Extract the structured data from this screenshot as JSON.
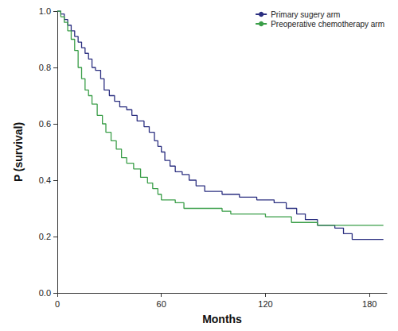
{
  "chart_data": {
    "type": "line",
    "line_style": "step",
    "marker": "none",
    "xlabel": "Months",
    "ylabel": "P (survival)",
    "xlim": [
      0,
      190
    ],
    "xticks": [
      0,
      60,
      120,
      180
    ],
    "ylim": [
      0,
      1.0
    ],
    "yticks": [
      {
        "value": 0,
        "label": "0.0"
      },
      0.2,
      0.4,
      0.6,
      0.8,
      {
        "value": 1.0,
        "label": "1.0"
      }
    ],
    "grid": false,
    "legend": "top-right",
    "series": [
      {
        "name": "Primary sugery arm",
        "color": "#2b2f80",
        "x": [
          0,
          2,
          4,
          6,
          8,
          10,
          12,
          14,
          16,
          18,
          20,
          22,
          25,
          27,
          30,
          33,
          36,
          40,
          43,
          46,
          50,
          53,
          56,
          58,
          60,
          62,
          65,
          68,
          72,
          76,
          80,
          85,
          95,
          105,
          115,
          125,
          132,
          138,
          143,
          150,
          160,
          165,
          170,
          188
        ],
        "values": [
          1.0,
          0.99,
          0.97,
          0.95,
          0.93,
          0.91,
          0.89,
          0.87,
          0.85,
          0.83,
          0.8,
          0.79,
          0.76,
          0.72,
          0.7,
          0.68,
          0.66,
          0.65,
          0.63,
          0.61,
          0.59,
          0.57,
          0.54,
          0.52,
          0.5,
          0.47,
          0.45,
          0.43,
          0.42,
          0.4,
          0.38,
          0.36,
          0.35,
          0.34,
          0.33,
          0.32,
          0.3,
          0.28,
          0.26,
          0.24,
          0.23,
          0.21,
          0.19,
          0.19
        ]
      },
      {
        "name": "Preoperative chemotherapy arm",
        "color": "#3a9e48",
        "x": [
          0,
          2,
          4,
          6,
          8,
          10,
          12,
          14,
          16,
          18,
          20,
          23,
          26,
          28,
          31,
          34,
          37,
          40,
          44,
          48,
          52,
          55,
          58,
          60,
          68,
          73,
          95,
          100,
          120,
          135,
          150,
          188
        ],
        "values": [
          1.0,
          0.98,
          0.96,
          0.93,
          0.9,
          0.86,
          0.8,
          0.76,
          0.72,
          0.7,
          0.67,
          0.63,
          0.6,
          0.57,
          0.54,
          0.51,
          0.48,
          0.46,
          0.44,
          0.41,
          0.39,
          0.37,
          0.35,
          0.33,
          0.32,
          0.3,
          0.29,
          0.28,
          0.27,
          0.25,
          0.24,
          0.24
        ]
      }
    ]
  }
}
